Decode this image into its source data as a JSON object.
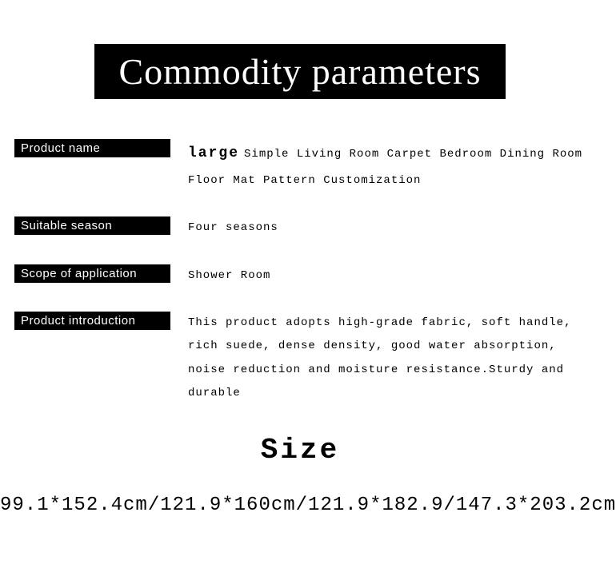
{
  "header": {
    "title": "Commodity parameters",
    "background_color": "#000000",
    "text_color": "#ffffff",
    "font_family": "serif",
    "font_size_pt": 34
  },
  "label_style": {
    "background_color": "#000000",
    "text_color": "#ffffff",
    "font_size_pt": 11
  },
  "value_style": {
    "text_color": "#000000",
    "font_family": "monospace",
    "font_size_pt": 11
  },
  "rows": {
    "product_name": {
      "label": "Product name",
      "emphasis": "large",
      "value": "Simple Living Room Carpet Bedroom Dining Room Floor Mat Pattern Customization"
    },
    "suitable_season": {
      "label": "Suitable season",
      "value": "Four seasons"
    },
    "scope_of_application": {
      "label": "Scope of application",
      "value": "Shower Room"
    },
    "product_introduction": {
      "label": "Product introduction",
      "value": "This product adopts high-grade fabric, soft handle, rich suede, dense density, good water absorption, noise reduction and moisture resistance.Sturdy and durable"
    }
  },
  "size": {
    "heading": "Size",
    "heading_font_size_pt": 28,
    "values": "99.1*152.4cm/121.9*160cm/121.9*182.9/147.3*203.2cm",
    "values_font_size_pt": 18
  }
}
